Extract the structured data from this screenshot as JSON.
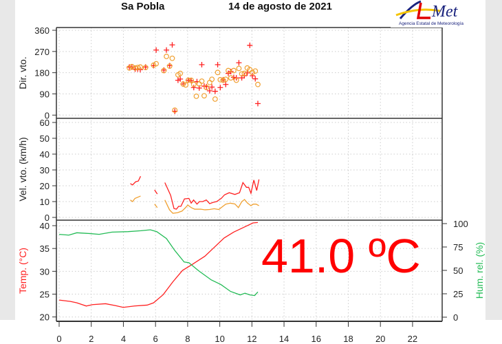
{
  "header": {
    "station": "Sa Pobla",
    "date": "14 de agosto de 2021"
  },
  "logo": {
    "text": "AEMet",
    "subtitle": "Agencia Estatal de Meteorología"
  },
  "colors": {
    "gust": "#ff2020",
    "mean": "#f0a030",
    "temp": "#ff2020",
    "humidity": "#22bb55",
    "big_value": "#ff0000"
  },
  "current_temperature": "41.0 ºC",
  "chart_data": [
    {
      "type": "scatter",
      "ylabel": "Dir. vto.",
      "ylim": [
        0,
        360
      ],
      "yticks": [
        "0",
        "90",
        "180",
        "270",
        "360"
      ],
      "xlim": [
        0,
        24
      ],
      "grid": true,
      "series": [
        {
          "marker": "plus",
          "color": "#ff2020",
          "x": [
            4.37,
            4.53,
            4.73,
            4.89,
            5.05,
            5.38,
            5.88,
            6.04,
            6.52,
            6.68,
            6.88,
            7.04,
            7.2,
            7.4,
            7.54,
            7.72,
            8.04,
            8.22,
            8.38,
            8.58,
            8.72,
            8.88,
            9.03,
            9.17,
            9.37,
            9.51,
            9.71,
            9.87,
            10.03,
            10.21,
            10.37,
            10.53,
            10.69,
            10.87,
            11.03,
            11.19,
            11.37,
            11.53,
            11.71,
            11.87,
            12.03,
            12.21,
            12.37
          ],
          "y": [
            204,
            204,
            195,
            195,
            193,
            204,
            210,
            276,
            191,
            276,
            210,
            298,
            16,
            148,
            153,
            132,
            148,
            146,
            117,
            142,
            115,
            214,
            123,
            121,
            103,
            119,
            101,
            214,
            117,
            150,
            130,
            177,
            185,
            160,
            158,
            222,
            158,
            167,
            179,
            296,
            167,
            154,
            49
          ]
        },
        {
          "marker": "circle",
          "color": "#f0a030",
          "x": [
            4.37,
            4.53,
            4.73,
            4.89,
            5.05,
            5.38,
            5.88,
            6.04,
            6.52,
            6.68,
            6.88,
            7.04,
            7.2,
            7.4,
            7.54,
            7.72,
            7.88,
            8.04,
            8.22,
            8.38,
            8.54,
            8.72,
            8.88,
            9.03,
            9.17,
            9.37,
            9.51,
            9.71,
            9.87,
            10.03,
            10.21,
            10.37,
            10.53,
            10.69,
            10.87,
            11.03,
            11.19,
            11.37,
            11.53,
            11.71,
            11.87,
            12.03,
            12.21,
            12.37
          ],
          "y": [
            200,
            206,
            200,
            202,
            204,
            202,
            212,
            218,
            189,
            249,
            208,
            241,
            21,
            171,
            177,
            132,
            128,
            148,
            148,
            130,
            80,
            132,
            144,
            82,
            117,
            138,
            152,
            68,
            181,
            150,
            148,
            152,
            189,
            158,
            189,
            148,
            198,
            175,
            177,
            200,
            193,
            181,
            187,
            130
          ]
        }
      ]
    },
    {
      "type": "line",
      "ylabel": "Vel. vto. (km/h)",
      "ylim": [
        0,
        60
      ],
      "yticks": [
        "0",
        "10",
        "20",
        "30",
        "40",
        "50",
        "60"
      ],
      "xlim": [
        0,
        24
      ],
      "grid": true,
      "series": [
        {
          "color": "#ff2020",
          "segments": [
            {
              "x": [
                4.43,
                4.57,
                4.76,
                4.93,
                5.07
              ],
              "y": [
                21.4,
                20.5,
                22.5,
                23,
                26
              ]
            },
            {
              "x": [
                5.94,
                6.11
              ],
              "y": [
                17.4,
                14.8
              ]
            },
            {
              "x": [
                6.58,
                6.94,
                7.15,
                7.3,
                7.44,
                7.58,
                7.8,
                8.08,
                8.22,
                8.37,
                8.58,
                8.73,
                8.94,
                9.16,
                9.37,
                9.59,
                9.8,
                10.09,
                10.3,
                10.59,
                10.94,
                11.23,
                11.44,
                11.66,
                11.8,
                11.94,
                12.12,
                12.3,
                12.44
              ],
              "y": [
                22,
                14,
                5.6,
                5.2,
                7,
                7,
                11.7,
                12,
                9,
                11,
                8.4,
                10,
                10,
                11,
                8.7,
                9.5,
                10,
                12,
                14.3,
                15.6,
                14.5,
                15.6,
                22,
                19,
                19,
                15.3,
                23.6,
                17,
                24
              ]
            }
          ]
        },
        {
          "color": "#f0a030",
          "segments": [
            {
              "x": [
                4.43,
                4.57,
                4.72,
                5.07
              ],
              "y": [
                11,
                10,
                12,
                13.5
              ]
            },
            {
              "x": [
                5.94,
                6.11
              ],
              "y": [
                8.4,
                6.2
              ]
            },
            {
              "x": [
                6.58,
                6.87,
                7.08,
                7.37,
                7.65,
                7.87,
                8.01,
                8.22,
                8.44,
                8.8,
                9.08,
                9.37,
                9.65,
                9.94,
                10.09,
                10.37,
                10.66,
                10.94,
                11.16,
                11.37,
                11.54,
                11.73,
                11.94,
                12.09,
                12.26,
                12.44
              ],
              "y": [
                11,
                4.8,
                2.6,
                3,
                4,
                6.2,
                7.8,
                6.2,
                5.2,
                5.2,
                4.8,
                5,
                5.5,
                5,
                6.2,
                8.4,
                9,
                8.5,
                6.2,
                10,
                11.3,
                9,
                7.4,
                8.4,
                8.4,
                7.4
              ]
            }
          ]
        }
      ]
    },
    {
      "type": "line",
      "ylabel": "Temp. (°C)",
      "y2label": "Hum. rel. (%)",
      "ylim": [
        20,
        40
      ],
      "y2lim": [
        0,
        100
      ],
      "yticks": [
        "20",
        "25",
        "30",
        "35",
        "40"
      ],
      "y2ticks": [
        "0",
        "25",
        "50",
        "75",
        "100"
      ],
      "xlim": [
        0,
        24
      ],
      "xticks": [
        "0",
        "2",
        "4",
        "6",
        "8",
        "10",
        "12",
        "14",
        "16",
        "18",
        "20",
        "22"
      ],
      "grid": true,
      "series": [
        {
          "axis": "left",
          "color": "#ff2020",
          "x": [
            0,
            0.7,
            1.1,
            1.69,
            2.09,
            2.89,
            3.49,
            3.99,
            4.69,
            5.48,
            5.88,
            6.48,
            7.08,
            7.68,
            8.28,
            9.07,
            9.67,
            10.27,
            10.87,
            11.47,
            12.07,
            12.37
          ],
          "y": [
            23.7,
            23.4,
            23.1,
            22.4,
            22.7,
            22.9,
            22.5,
            22.1,
            22.4,
            22.6,
            23.1,
            24.9,
            27.7,
            30.2,
            31.5,
            33.3,
            35.3,
            37.3,
            38.6,
            39.6,
            40.6,
            40.7
          ]
        },
        {
          "axis": "right",
          "color": "#22bb55",
          "x": [
            0,
            0.6,
            1.1,
            1.89,
            2.49,
            3.29,
            4.29,
            5.08,
            5.68,
            6.08,
            6.68,
            7.18,
            7.78,
            8.08,
            8.68,
            9.47,
            10.07,
            10.67,
            11.27,
            11.57,
            11.87,
            12.17,
            12.37
          ],
          "y": [
            88.5,
            87.7,
            90.2,
            89.4,
            88.5,
            90.9,
            91.4,
            92.4,
            93.4,
            91.4,
            84,
            71.7,
            59,
            58.2,
            49.6,
            39.8,
            34.9,
            27.5,
            23.8,
            25.6,
            23.8,
            23.1,
            27
          ]
        }
      ]
    }
  ]
}
